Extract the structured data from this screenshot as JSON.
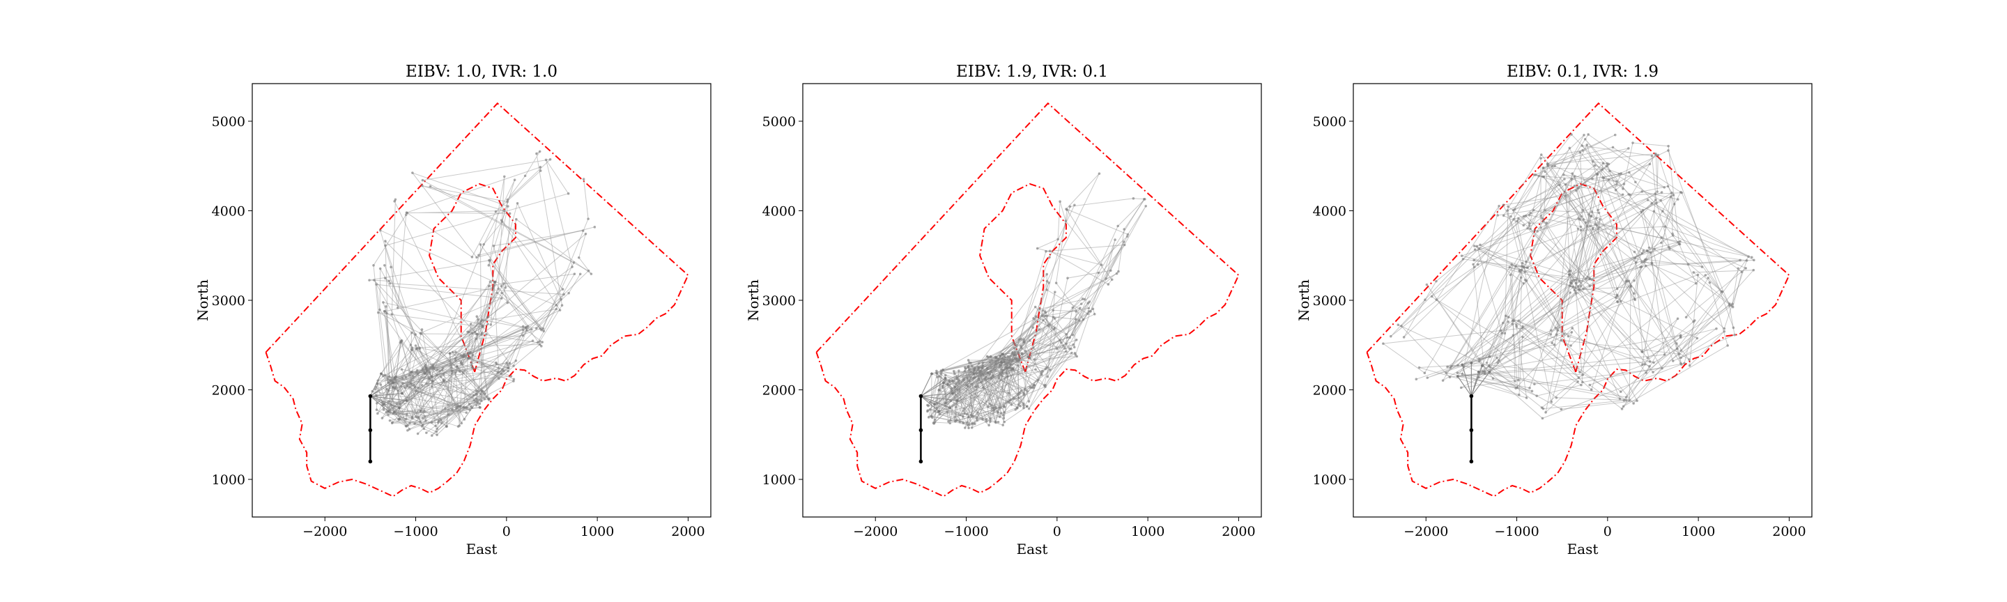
{
  "chart_data": [
    {
      "type": "line",
      "title": "EIBV: 1.0, IVR: 1.0",
      "xlabel": "East",
      "ylabel": "North",
      "xlim": [
        -2800,
        2250
      ],
      "ylim": [
        580,
        5420
      ],
      "xticks": [
        -2000,
        -1000,
        0,
        1000,
        2000
      ],
      "yticks": [
        1000,
        2000,
        3000,
        4000,
        5000
      ],
      "tick_labels_x": [
        "−2000",
        "−1000",
        "0",
        "1000",
        "2000"
      ],
      "tick_labels_y": [
        "1000",
        "2000",
        "3000",
        "4000",
        "5000"
      ],
      "grid": false,
      "boundary_color": "#ff0000",
      "path_color": "#888888",
      "start_color": "#000000",
      "start_path": [
        [
          -1500,
          1200
        ],
        [
          -1500,
          1550
        ],
        [
          -1500,
          1930
        ]
      ],
      "fan_targets": [
        [
          -1380,
          2180
        ],
        [
          -1250,
          2080
        ],
        [
          -1150,
          1960
        ],
        [
          -1100,
          1880
        ],
        [
          -1180,
          1800
        ],
        [
          -1300,
          1760
        ],
        [
          -1230,
          2130
        ],
        [
          -1350,
          1840
        ]
      ],
      "explored_region": [
        [
          -1300,
          1750
        ],
        [
          -1000,
          1640
        ],
        [
          -800,
          1590
        ],
        [
          -550,
          1700
        ],
        [
          -300,
          1900
        ],
        [
          0,
          2200
        ],
        [
          300,
          2600
        ],
        [
          600,
          3000
        ],
        [
          850,
          3400
        ],
        [
          950,
          3800
        ],
        [
          800,
          4250
        ],
        [
          450,
          4550
        ],
        [
          100,
          4400
        ],
        [
          0,
          4000
        ],
        [
          -250,
          3500
        ],
        [
          -100,
          3100
        ],
        [
          -300,
          2700
        ],
        [
          -500,
          2300
        ],
        [
          -800,
          2150
        ],
        [
          -1100,
          2100
        ],
        [
          -1350,
          2050
        ]
      ],
      "explored_region_far": [
        [
          -950,
          4300
        ],
        [
          -1200,
          4000
        ],
        [
          -1350,
          3700
        ],
        [
          -1400,
          3300
        ],
        [
          -1300,
          2900
        ],
        [
          -1050,
          2550
        ]
      ]
    },
    {
      "type": "line",
      "title": "EIBV: 1.9, IVR: 0.1",
      "xlabel": "East",
      "ylabel": "North",
      "xlim": [
        -2800,
        2250
      ],
      "ylim": [
        580,
        5420
      ],
      "xticks": [
        -2000,
        -1000,
        0,
        1000,
        2000
      ],
      "yticks": [
        1000,
        2000,
        3000,
        4000,
        5000
      ],
      "tick_labels_x": [
        "−2000",
        "−1000",
        "0",
        "1000",
        "2000"
      ],
      "tick_labels_y": [
        "1000",
        "2000",
        "3000",
        "4000",
        "5000"
      ],
      "grid": false,
      "boundary_color": "#ff0000",
      "path_color": "#888888",
      "start_color": "#000000",
      "start_path": [
        [
          -1500,
          1200
        ],
        [
          -1500,
          1550
        ],
        [
          -1500,
          1930
        ]
      ],
      "fan_targets": [
        [
          -1380,
          2180
        ],
        [
          -1250,
          2080
        ],
        [
          -1150,
          1960
        ],
        [
          -1100,
          1880
        ],
        [
          -1180,
          1800
        ],
        [
          -1300,
          1760
        ],
        [
          -1230,
          2130
        ],
        [
          -1350,
          1840
        ]
      ],
      "explored_region": [
        [
          -1300,
          1750
        ],
        [
          -1000,
          1700
        ],
        [
          -700,
          1720
        ],
        [
          -400,
          1900
        ],
        [
          -150,
          2150
        ],
        [
          100,
          2500
        ],
        [
          300,
          2900
        ],
        [
          550,
          3300
        ],
        [
          750,
          3700
        ],
        [
          850,
          4100
        ],
        [
          650,
          4400
        ],
        [
          350,
          4350
        ],
        [
          150,
          4000
        ],
        [
          -100,
          3600
        ],
        [
          0,
          3200
        ],
        [
          -150,
          2800
        ],
        [
          -350,
          2450
        ],
        [
          -600,
          2250
        ],
        [
          -900,
          2150
        ],
        [
          -1200,
          2100
        ]
      ],
      "explored_region_far": [
        [
          -850,
          2250
        ],
        [
          -550,
          2300
        ]
      ]
    },
    {
      "type": "line",
      "title": "EIBV: 0.1, IVR: 1.9",
      "xlabel": "East",
      "ylabel": "North",
      "xlim": [
        -2800,
        2250
      ],
      "ylim": [
        580,
        5420
      ],
      "xticks": [
        -2000,
        -1000,
        0,
        1000,
        2000
      ],
      "yticks": [
        1000,
        2000,
        3000,
        4000,
        5000
      ],
      "tick_labels_x": [
        "−2000",
        "−1000",
        "0",
        "1000",
        "2000"
      ],
      "tick_labels_y": [
        "1000",
        "2000",
        "3000",
        "4000",
        "5000"
      ],
      "grid": false,
      "boundary_color": "#ff0000",
      "path_color": "#888888",
      "start_color": "#000000",
      "start_path": [
        [
          -1500,
          1200
        ],
        [
          -1500,
          1550
        ],
        [
          -1500,
          1930
        ]
      ],
      "fan_targets": [
        [
          -1600,
          2280
        ],
        [
          -1500,
          2300
        ],
        [
          -1380,
          2270
        ],
        [
          -1300,
          2200
        ],
        [
          -1650,
          2150
        ],
        [
          -1420,
          2200
        ]
      ],
      "explored_region": [
        [
          -2350,
          2600
        ],
        [
          -2000,
          2200
        ],
        [
          -1700,
          2150
        ],
        [
          -1300,
          2250
        ],
        [
          -1050,
          2700
        ],
        [
          -1000,
          3300
        ],
        [
          -800,
          3900
        ],
        [
          -450,
          4300
        ],
        [
          -100,
          4450
        ],
        [
          200,
          4300
        ],
        [
          500,
          4100
        ],
        [
          700,
          4200
        ],
        [
          550,
          4650
        ],
        [
          150,
          4800
        ],
        [
          -300,
          4750
        ],
        [
          -700,
          4500
        ],
        [
          -1100,
          4000
        ],
        [
          -1500,
          3500
        ],
        [
          -1900,
          3100
        ]
      ],
      "explored_region_far": [
        [
          -200,
          3900
        ],
        [
          -300,
          3200
        ],
        [
          -500,
          2600
        ],
        [
          -250,
          2100
        ],
        [
          200,
          1900
        ],
        [
          500,
          2300
        ],
        [
          900,
          2700
        ],
        [
          1300,
          3000
        ],
        [
          1500,
          3400
        ],
        [
          1000,
          3300
        ],
        [
          700,
          3700
        ],
        [
          400,
          3500
        ],
        [
          200,
          3100
        ],
        [
          800,
          2400
        ],
        [
          1300,
          2600
        ],
        [
          -900,
          2000
        ],
        [
          -600,
          1800
        ]
      ]
    }
  ],
  "boundary": {
    "outer": [
      [
        -2650,
        2420
      ],
      [
        -100,
        5200
      ],
      [
        2000,
        3280
      ],
      [
        1850,
        2950
      ],
      [
        1750,
        2850
      ],
      [
        1650,
        2800
      ],
      [
        1550,
        2700
      ],
      [
        1450,
        2620
      ],
      [
        1300,
        2600
      ],
      [
        1150,
        2500
      ],
      [
        1050,
        2380
      ],
      [
        950,
        2350
      ],
      [
        850,
        2280
      ],
      [
        750,
        2160
      ],
      [
        650,
        2100
      ],
      [
        550,
        2130
      ],
      [
        400,
        2100
      ],
      [
        300,
        2150
      ],
      [
        200,
        2220
      ],
      [
        100,
        2230
      ],
      [
        0,
        2120
      ],
      [
        -50,
        2000
      ],
      [
        -150,
        1900
      ],
      [
        -250,
        1770
      ],
      [
        -350,
        1600
      ],
      [
        -400,
        1380
      ],
      [
        -470,
        1200
      ],
      [
        -550,
        1070
      ],
      [
        -650,
        980
      ],
      [
        -750,
        900
      ],
      [
        -850,
        850
      ],
      [
        -950,
        900
      ],
      [
        -1050,
        930
      ],
      [
        -1150,
        880
      ],
      [
        -1250,
        810
      ],
      [
        -1400,
        880
      ],
      [
        -1550,
        950
      ],
      [
        -1700,
        1000
      ],
      [
        -1850,
        970
      ],
      [
        -2000,
        900
      ],
      [
        -2150,
        980
      ],
      [
        -2200,
        1150
      ],
      [
        -2200,
        1300
      ],
      [
        -2280,
        1450
      ],
      [
        -2250,
        1620
      ],
      [
        -2320,
        1780
      ],
      [
        -2350,
        1900
      ],
      [
        -2450,
        2030
      ],
      [
        -2550,
        2100
      ],
      [
        -2600,
        2270
      ],
      [
        -2650,
        2420
      ]
    ],
    "inner": [
      [
        -350,
        2200
      ],
      [
        -500,
        2600
      ],
      [
        -500,
        3000
      ],
      [
        -750,
        3250
      ],
      [
        -850,
        3500
      ],
      [
        -800,
        3800
      ],
      [
        -600,
        4000
      ],
      [
        -500,
        4200
      ],
      [
        -300,
        4300
      ],
      [
        -150,
        4250
      ],
      [
        -50,
        4050
      ],
      [
        100,
        3850
      ],
      [
        100,
        3700
      ],
      [
        -50,
        3550
      ],
      [
        -150,
        3400
      ],
      [
        -150,
        3150
      ],
      [
        -200,
        2850
      ],
      [
        -230,
        2650
      ],
      [
        -350,
        2200
      ]
    ]
  },
  "layout_seed": 7
}
